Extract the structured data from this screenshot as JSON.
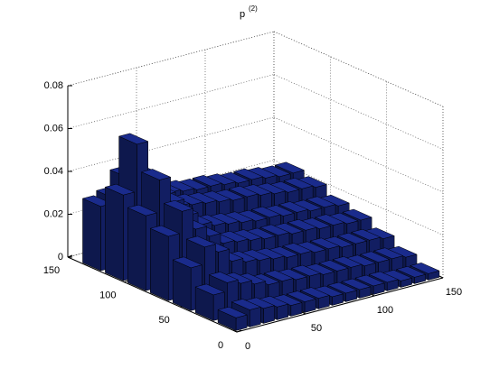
{
  "chart_data": {
    "type": "bar3",
    "title": "p",
    "title_superscript": "(2)",
    "x": [
      5,
      15,
      25,
      35,
      45,
      55,
      65,
      75,
      85,
      95,
      105,
      115,
      125,
      135,
      145
    ],
    "y": [
      10,
      30,
      50,
      70,
      90,
      110,
      130
    ],
    "values": [
      [
        0.006,
        0.008,
        0.007,
        0.006,
        0.005,
        0.005,
        0.005,
        0.004,
        0.004,
        0.004,
        0.004,
        0.004,
        0.003,
        0.003,
        0.003
      ],
      [
        0.012,
        0.016,
        0.014,
        0.012,
        0.01,
        0.01,
        0.009,
        0.009,
        0.008,
        0.008,
        0.008,
        0.007,
        0.007,
        0.007,
        0.006
      ],
      [
        0.02,
        0.028,
        0.024,
        0.018,
        0.016,
        0.015,
        0.014,
        0.013,
        0.013,
        0.012,
        0.012,
        0.011,
        0.011,
        0.011,
        0.01
      ],
      [
        0.03,
        0.04,
        0.03,
        0.025,
        0.02,
        0.019,
        0.018,
        0.017,
        0.017,
        0.016,
        0.016,
        0.015,
        0.015,
        0.014,
        0.014
      ],
      [
        0.035,
        0.05,
        0.038,
        0.03,
        0.024,
        0.022,
        0.021,
        0.02,
        0.019,
        0.019,
        0.018,
        0.018,
        0.017,
        0.017,
        0.016
      ],
      [
        0.04,
        0.062,
        0.045,
        0.035,
        0.028,
        0.027,
        0.026,
        0.025,
        0.024,
        0.024,
        0.023,
        0.022,
        0.021,
        0.021,
        0.02
      ],
      [
        0.03,
        0.032,
        0.04,
        0.036,
        0.03,
        0.028,
        0.027,
        0.026,
        0.026,
        0.025,
        0.024,
        0.024,
        0.023,
        0.022,
        0.022
      ]
    ],
    "xlim": [
      0,
      150
    ],
    "ylim": [
      0,
      150
    ],
    "zlim": [
      0,
      0.08
    ],
    "xticks": [
      0,
      50,
      100,
      150
    ],
    "yticks": [
      0,
      50,
      100,
      150
    ],
    "zticks": [
      0,
      0.02,
      0.04,
      0.06,
      0.08
    ],
    "grid": true,
    "color": "#1a2b8c"
  }
}
